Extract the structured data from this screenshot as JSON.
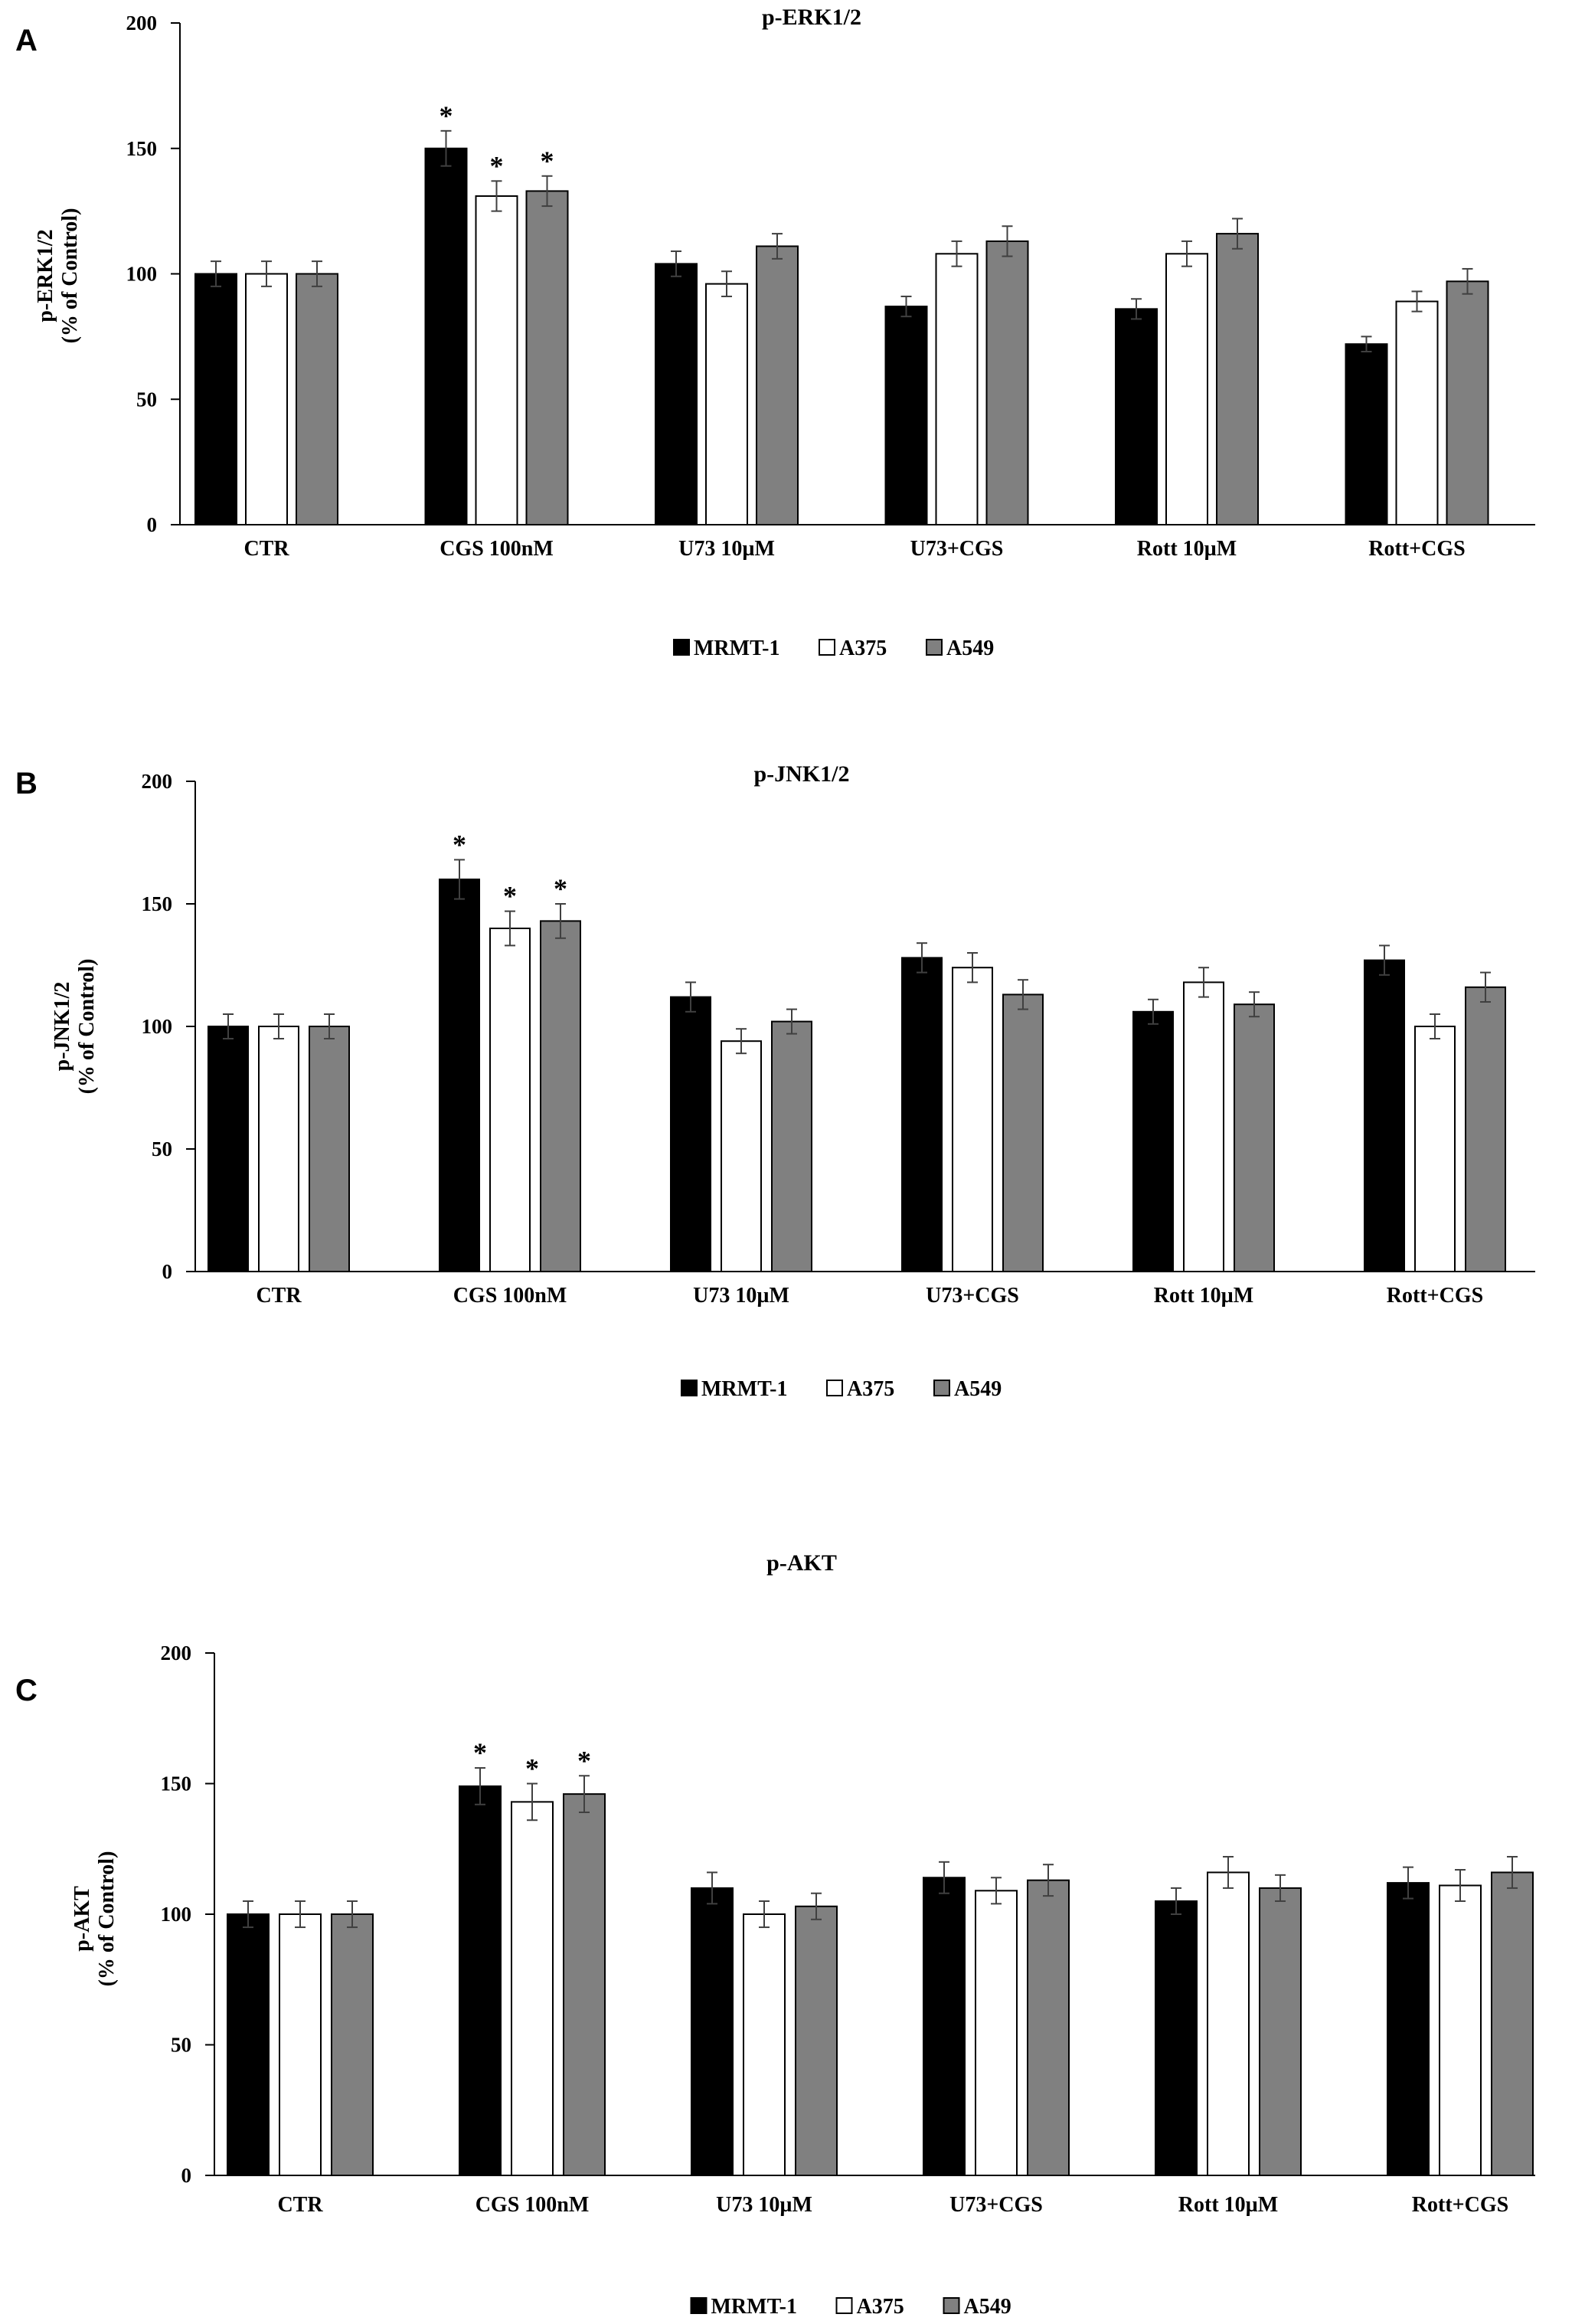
{
  "figure": {
    "series_colors": {
      "MRMT-1": "#000000",
      "A375": "#ffffff",
      "A549": "#808080"
    }
  },
  "chart_data": [
    {
      "panel": "A",
      "type": "bar",
      "title": "p-ERK1/2",
      "ylabel": "p-ERK1/2\n(% of Control)",
      "ylim": [
        0,
        200
      ],
      "yticks": [
        0,
        50,
        100,
        150,
        200
      ],
      "categories": [
        "CTR",
        "CGS 100nM",
        "U73 10µM",
        "U73+CGS",
        "Rott 10µM",
        "Rott+CGS"
      ],
      "series": [
        {
          "name": "MRMT-1",
          "values": [
            100,
            150,
            104,
            87,
            86,
            72
          ],
          "errors": [
            5,
            7,
            5,
            4,
            4,
            3
          ],
          "significant": [
            false,
            true,
            false,
            false,
            false,
            false
          ]
        },
        {
          "name": "A375",
          "values": [
            100,
            131,
            96,
            108,
            108,
            89
          ],
          "errors": [
            5,
            6,
            5,
            5,
            5,
            4
          ],
          "significant": [
            false,
            true,
            false,
            false,
            false,
            false
          ]
        },
        {
          "name": "A549",
          "values": [
            100,
            133,
            111,
            113,
            116,
            97
          ],
          "errors": [
            5,
            6,
            5,
            6,
            6,
            5
          ],
          "significant": [
            false,
            true,
            false,
            false,
            false,
            false
          ]
        }
      ],
      "legend": [
        "MRMT-1",
        "A375",
        "A549"
      ],
      "significance_marker": "*",
      "grid": false
    },
    {
      "panel": "B",
      "type": "bar",
      "title": "p-JNK1/2",
      "ylabel": "p-JNK1/2\n(% of Control)",
      "ylim": [
        0,
        200
      ],
      "yticks": [
        0,
        50,
        100,
        150,
        200
      ],
      "categories": [
        "CTR",
        "CGS 100nM",
        "U73 10µM",
        "U73+CGS",
        "Rott 10µM",
        "Rott+CGS"
      ],
      "series": [
        {
          "name": "MRMT-1",
          "values": [
            100,
            160,
            112,
            128,
            106,
            127
          ],
          "errors": [
            5,
            8,
            6,
            6,
            5,
            6
          ],
          "significant": [
            false,
            true,
            false,
            false,
            false,
            false
          ]
        },
        {
          "name": "A375",
          "values": [
            100,
            140,
            94,
            124,
            118,
            100
          ],
          "errors": [
            5,
            7,
            5,
            6,
            6,
            5
          ],
          "significant": [
            false,
            true,
            false,
            false,
            false,
            false
          ]
        },
        {
          "name": "A549",
          "values": [
            100,
            143,
            102,
            113,
            109,
            116
          ],
          "errors": [
            5,
            7,
            5,
            6,
            5,
            6
          ],
          "significant": [
            false,
            true,
            false,
            false,
            false,
            false
          ]
        }
      ],
      "legend": [
        "MRMT-1",
        "A375",
        "A549"
      ],
      "significance_marker": "*",
      "grid": false
    },
    {
      "panel": "C",
      "type": "bar",
      "title": "p-AKT",
      "ylabel": "p-AKT\n(% of Control)",
      "ylim": [
        0,
        200
      ],
      "yticks": [
        0,
        50,
        100,
        150,
        200
      ],
      "categories": [
        "CTR",
        "CGS 100nM",
        "U73 10µM",
        "U73+CGS",
        "Rott 10µM",
        "Rott+CGS"
      ],
      "series": [
        {
          "name": "MRMT-1",
          "values": [
            100,
            149,
            110,
            114,
            105,
            112
          ],
          "errors": [
            5,
            7,
            6,
            6,
            5,
            6
          ],
          "significant": [
            false,
            true,
            false,
            false,
            false,
            false
          ]
        },
        {
          "name": "A375",
          "values": [
            100,
            143,
            100,
            109,
            116,
            111
          ],
          "errors": [
            5,
            7,
            5,
            5,
            6,
            6
          ],
          "significant": [
            false,
            true,
            false,
            false,
            false,
            false
          ]
        },
        {
          "name": "A549",
          "values": [
            100,
            146,
            103,
            113,
            110,
            116
          ],
          "errors": [
            5,
            7,
            5,
            6,
            5,
            6
          ],
          "significant": [
            false,
            true,
            false,
            false,
            false,
            false
          ]
        }
      ],
      "legend": [
        "MRMT-1",
        "A375",
        "A549"
      ],
      "significance_marker": "*",
      "grid": false
    }
  ]
}
